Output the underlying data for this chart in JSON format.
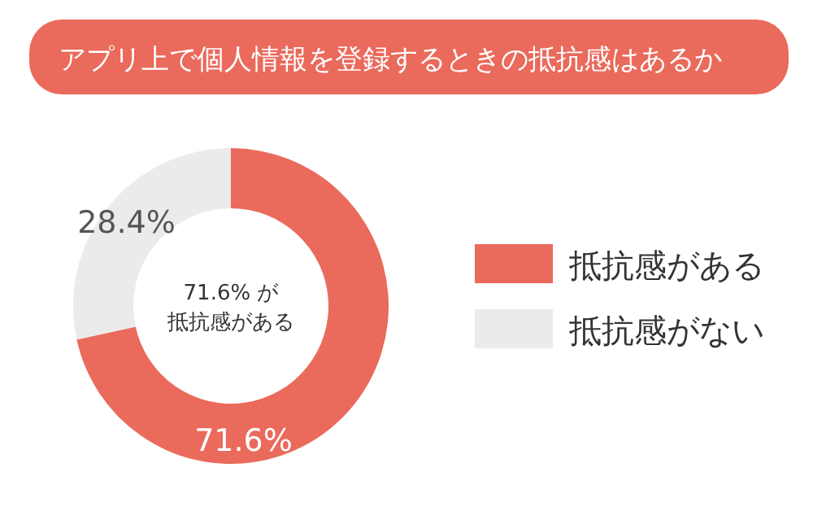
{
  "chart_data": {
    "type": "donut",
    "title": "アプリ上で個人情報を登録するときの抵抗感はあるか",
    "categories": [
      "抵抗感がある",
      "抵抗感がない"
    ],
    "values": [
      71.6,
      28.4
    ],
    "colors": [
      "#ea6a5c",
      "#ebebeb"
    ],
    "value_labels": [
      "71.6%",
      "28.4%"
    ],
    "annotations": [
      "71.6% が",
      "抵抗感がある"
    ],
    "legend": "right"
  }
}
